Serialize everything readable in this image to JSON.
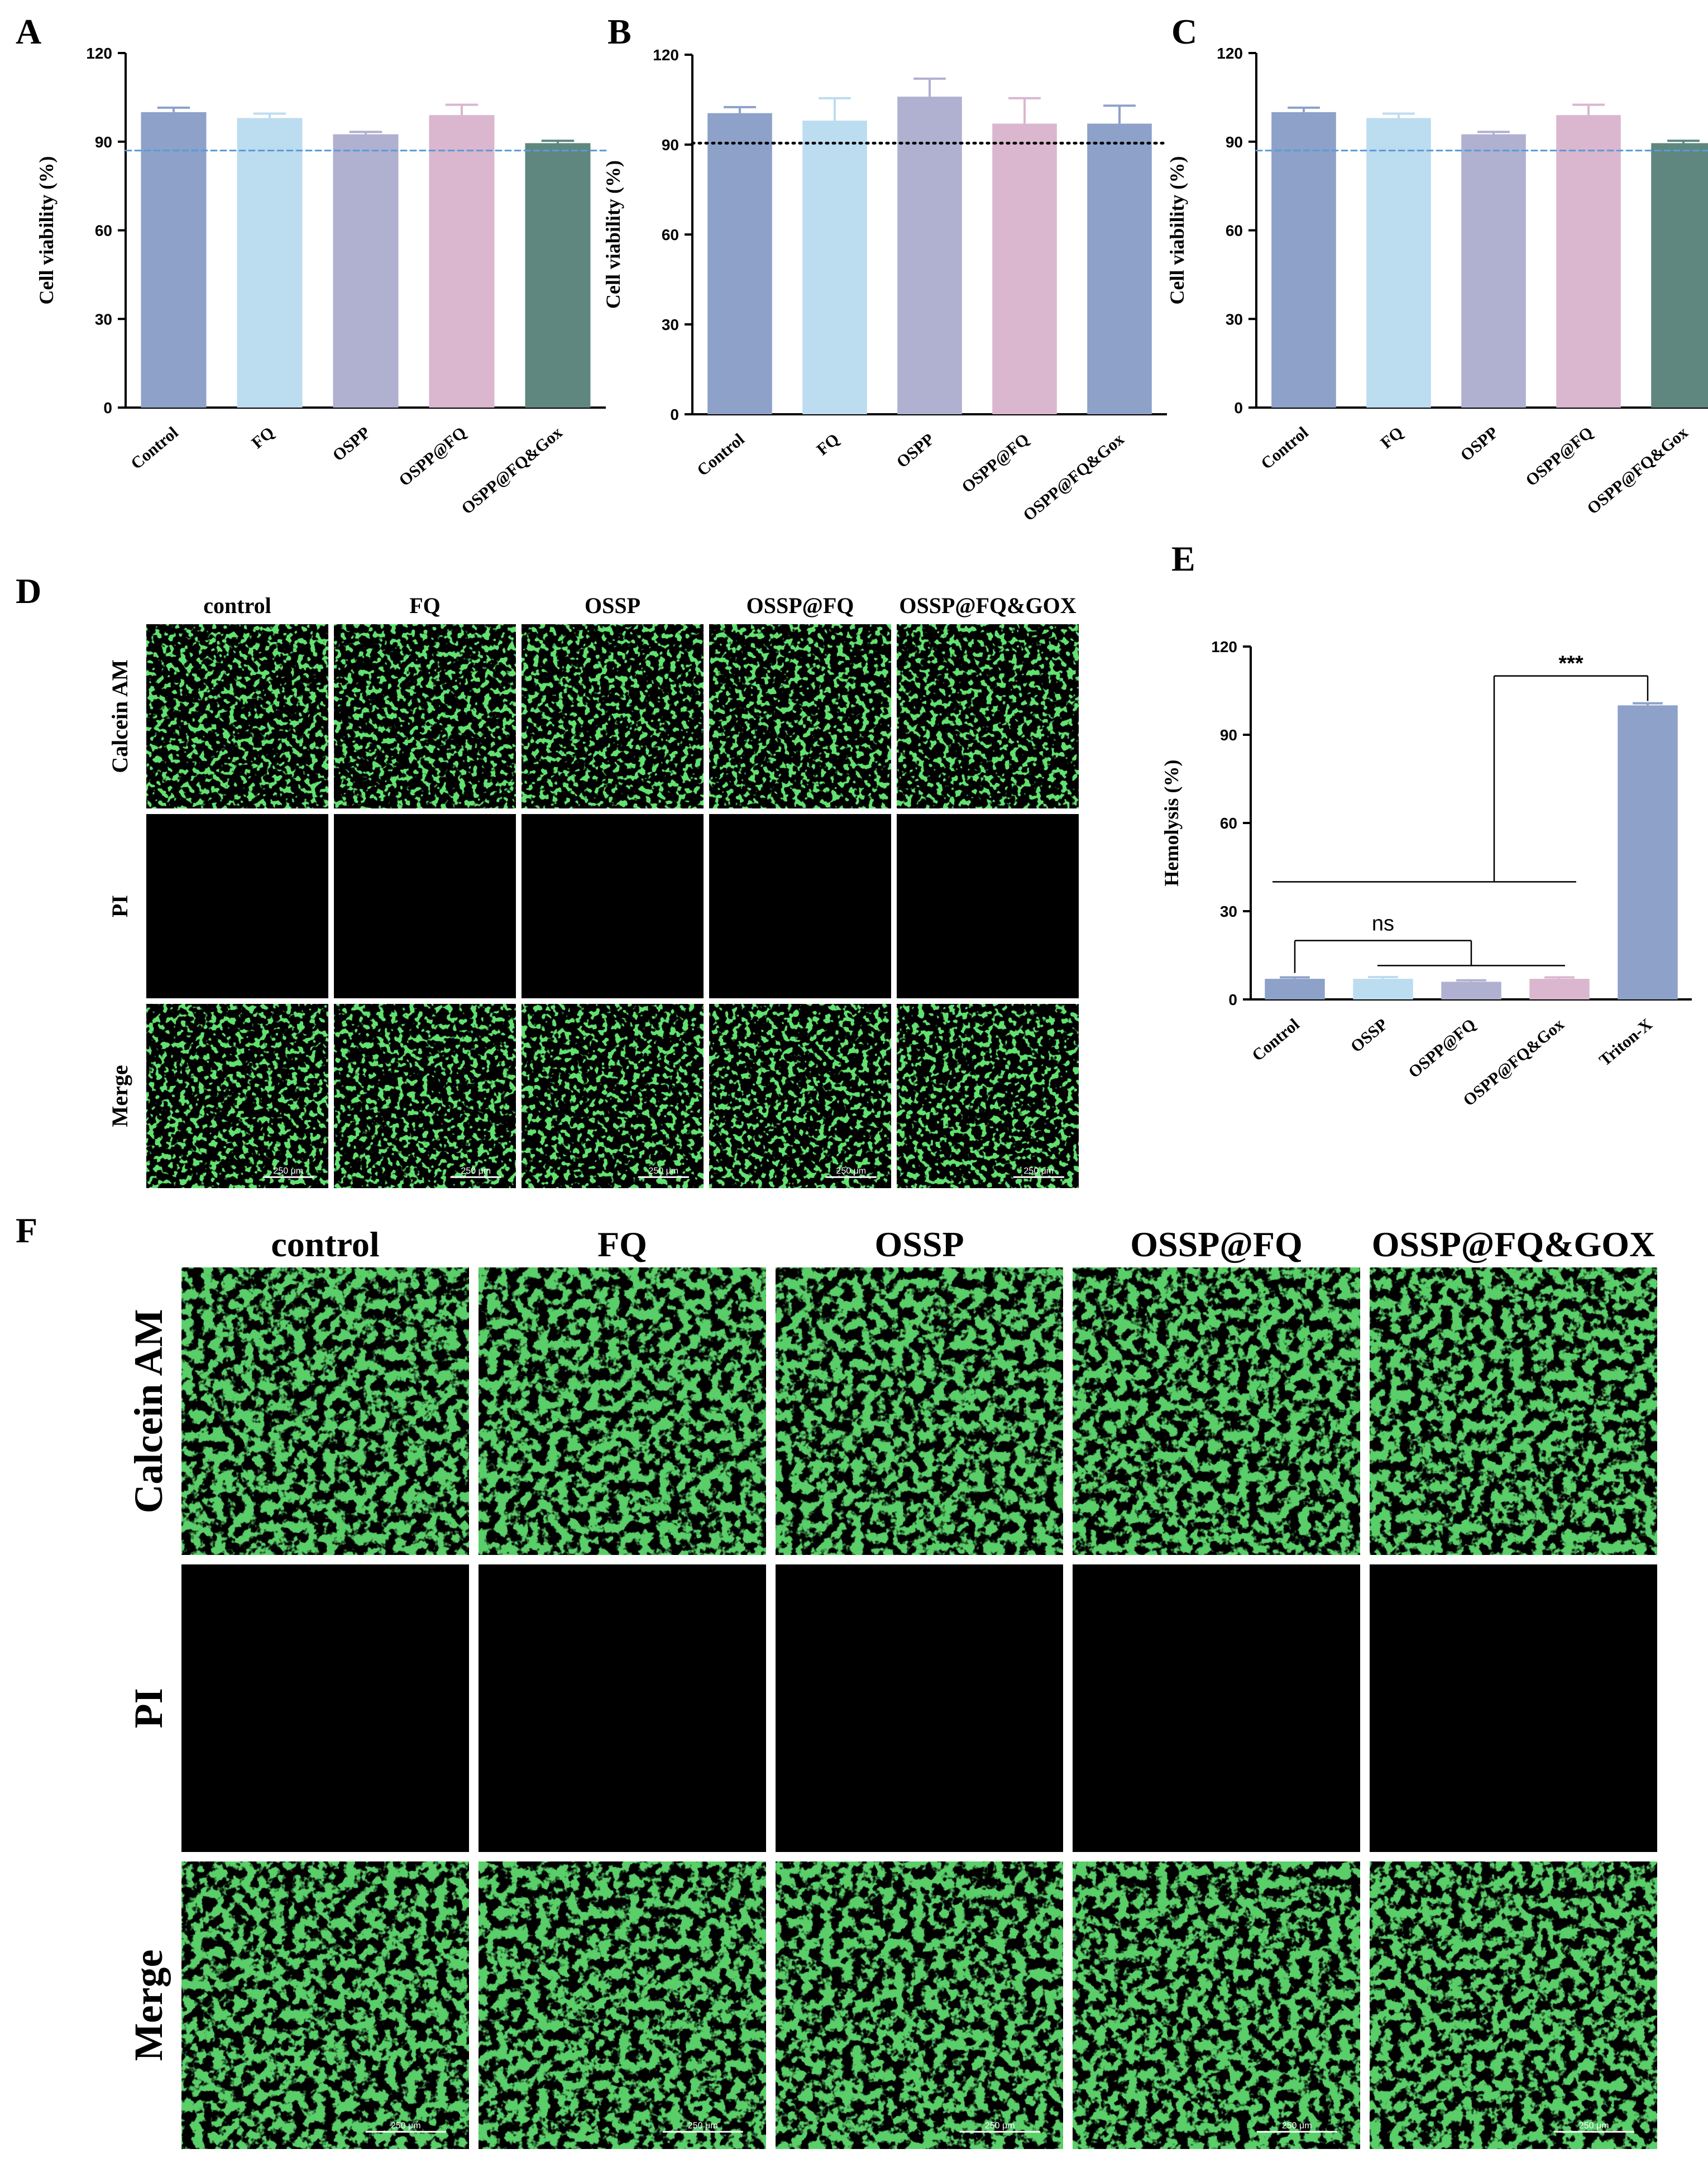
{
  "panels": {
    "A": "A",
    "B": "B",
    "C": "C",
    "D": "D",
    "E": "E",
    "F": "F"
  },
  "colors": {
    "control": "#8da1c9",
    "fq": "#bcdcf0",
    "ossp": "#b0b0d0",
    "ossp_fq": "#dab6cf",
    "ossp_fq_gox": "#5f8780",
    "ref_blue": "#5b9bd5",
    "ref_black": "#000000",
    "fluor_green": "#1fbf2a",
    "fluor_bg": "#000000"
  },
  "chart_data": [
    {
      "id": "A",
      "type": "bar",
      "ylabel": "Cell viability (%)",
      "ylim": [
        0,
        120
      ],
      "yticks": [
        "0",
        "30",
        "60",
        "90",
        "120"
      ],
      "categories": [
        "Control",
        "FQ",
        "OSPP",
        "OSPP@FQ",
        "OSPP@FQ&Gox"
      ],
      "values": [
        100,
        98,
        92.5,
        99,
        89.5
      ],
      "errors": [
        1.5,
        1.5,
        0.8,
        3.5,
        0.8
      ],
      "bar_colors": [
        "#8da1c9",
        "#bcdcf0",
        "#b0b0d0",
        "#dab6cf",
        "#5f8780"
      ],
      "reference_line": {
        "y": 87,
        "style": "dashed",
        "color": "#5b9bd5"
      }
    },
    {
      "id": "B",
      "type": "bar",
      "ylabel": "Cell viability (%)",
      "ylim": [
        0,
        120
      ],
      "yticks": [
        "0",
        "30",
        "60",
        "90",
        "120"
      ],
      "categories": [
        "Control",
        "FQ",
        "OSPP",
        "OSPP@FQ",
        "OSPP@FQ&Gox"
      ],
      "values": [
        100.5,
        98,
        106,
        97,
        97
      ],
      "errors": [
        2,
        7.5,
        6,
        8.5,
        6
      ],
      "bar_colors": [
        "#8da1c9",
        "#bcdcf0",
        "#b0b0d0",
        "#dab6cf",
        "#8da1c9"
      ],
      "reference_line": {
        "y": 90.5,
        "style": "dotted",
        "color": "#000000"
      }
    },
    {
      "id": "C",
      "type": "bar",
      "ylabel": "Cell viability (%)",
      "ylim": [
        0,
        120
      ],
      "yticks": [
        "0",
        "30",
        "60",
        "90",
        "120"
      ],
      "categories": [
        "Control",
        "FQ",
        "OSPP",
        "OSPP@FQ",
        "OSPP@FQ&Gox"
      ],
      "values": [
        100,
        98,
        92.5,
        99,
        89.5
      ],
      "errors": [
        1.5,
        1.5,
        0.8,
        3.5,
        0.8
      ],
      "bar_colors": [
        "#8da1c9",
        "#bcdcf0",
        "#b0b0d0",
        "#dab6cf",
        "#5f8780"
      ],
      "reference_line": {
        "y": 87,
        "style": "dashed",
        "color": "#5b9bd5"
      }
    },
    {
      "id": "E",
      "type": "bar",
      "ylabel": "Hemolysis (%)",
      "ylim": [
        0,
        120
      ],
      "yticks": [
        "0",
        "30",
        "60",
        "90",
        "120"
      ],
      "categories": [
        "Control",
        "OSSP",
        "OSPP@FQ",
        "OSPP@FQ&Gox",
        "Triton-X"
      ],
      "values": [
        7,
        7,
        6,
        7,
        100
      ],
      "errors": [
        0.5,
        0.6,
        0.5,
        0.5,
        0.7
      ],
      "bar_colors": [
        "#8da1c9",
        "#bcdcf0",
        "#b0b0d0",
        "#dab6cf",
        "#8da1c9"
      ],
      "annotations": {
        "ns": "ns",
        "stars": "***"
      }
    }
  ],
  "panel_d": {
    "columns": [
      "control",
      "FQ",
      "OSSP",
      "OSSP@FQ",
      "OSSP@FQ&GOX"
    ],
    "rows": [
      "Calcein AM",
      "PI",
      "Merge"
    ],
    "scale_bar": "250 μm"
  },
  "panel_f": {
    "columns": [
      "control",
      "FQ",
      "OSSP",
      "OSSP@FQ",
      "OSSP@FQ&GOX"
    ],
    "rows": [
      "Calcein AM",
      "PI",
      "Merge"
    ],
    "scale_bar": "250 μm"
  }
}
